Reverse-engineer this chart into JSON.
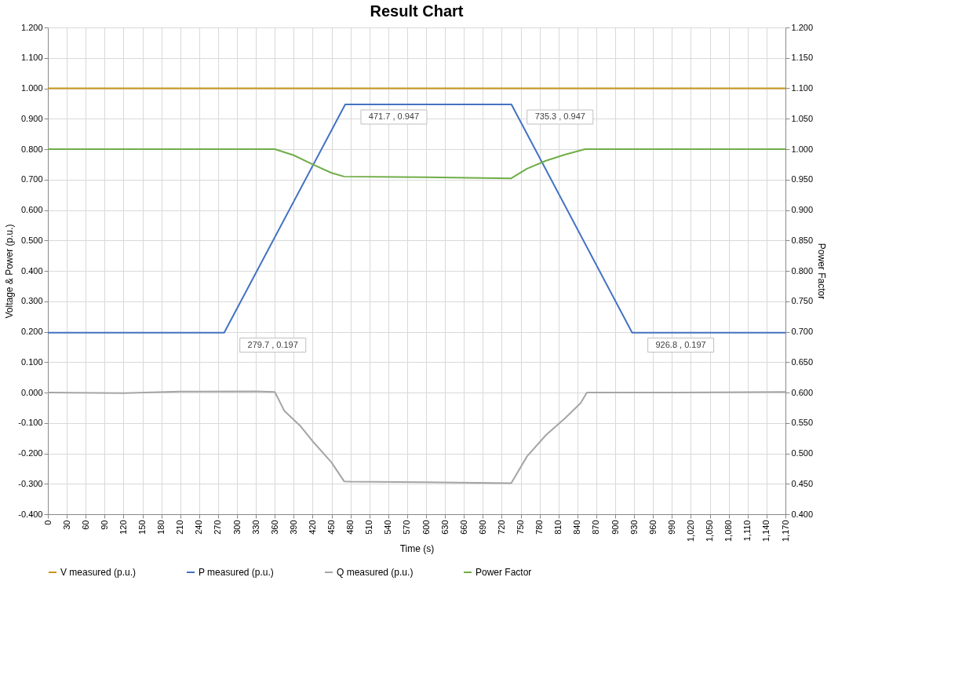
{
  "chart_data": {
    "type": "line",
    "title": "Result Chart",
    "xlabel": "Time (s)",
    "ylabel": "Voltage & Power (p.u.)",
    "y2label": "Power Factor",
    "xlim": [
      0,
      1170
    ],
    "xticks": [
      0,
      30,
      60,
      90,
      120,
      150,
      180,
      210,
      240,
      270,
      300,
      330,
      360,
      390,
      420,
      450,
      480,
      510,
      540,
      570,
      600,
      630,
      660,
      690,
      720,
      750,
      780,
      810,
      840,
      870,
      900,
      930,
      960,
      990,
      {
        "value": 1020,
        "label": "1,020"
      },
      {
        "value": 1050,
        "label": "1,050"
      },
      {
        "value": 1080,
        "label": "1,080"
      },
      {
        "value": 1110,
        "label": "1,110"
      },
      {
        "value": 1140,
        "label": "1,140"
      },
      {
        "value": 1170,
        "label": "1,170"
      }
    ],
    "ylim": [
      -0.4,
      1.2
    ],
    "yticks": [
      {
        "value": -0.4,
        "label": "-0.400"
      },
      {
        "value": -0.3,
        "label": "-0.300"
      },
      {
        "value": -0.2,
        "label": "-0.200"
      },
      {
        "value": -0.1,
        "label": "-0.100"
      },
      {
        "value": 0,
        "label": "0.000"
      },
      {
        "value": 0.1,
        "label": "0.100"
      },
      {
        "value": 0.2,
        "label": "0.200"
      },
      {
        "value": 0.3,
        "label": "0.300"
      },
      {
        "value": 0.4,
        "label": "0.400"
      },
      {
        "value": 0.5,
        "label": "0.500"
      },
      {
        "value": 0.6,
        "label": "0.600"
      },
      {
        "value": 0.7,
        "label": "0.700"
      },
      {
        "value": 0.8,
        "label": "0.800"
      },
      {
        "value": 0.9,
        "label": "0.900"
      },
      {
        "value": 1.0,
        "label": "1.000"
      },
      {
        "value": 1.1,
        "label": "1.100"
      },
      {
        "value": 1.2,
        "label": "1.200"
      }
    ],
    "y2lim": [
      0.4,
      1.2
    ],
    "y2ticks": [
      {
        "value": 0.4,
        "label": "0.400"
      },
      {
        "value": 0.45,
        "label": "0.450"
      },
      {
        "value": 0.5,
        "label": "0.500"
      },
      {
        "value": 0.55,
        "label": "0.550"
      },
      {
        "value": 0.6,
        "label": "0.600"
      },
      {
        "value": 0.65,
        "label": "0.650"
      },
      {
        "value": 0.7,
        "label": "0.700"
      },
      {
        "value": 0.75,
        "label": "0.750"
      },
      {
        "value": 0.8,
        "label": "0.800"
      },
      {
        "value": 0.85,
        "label": "0.850"
      },
      {
        "value": 0.9,
        "label": "0.900"
      },
      {
        "value": 0.95,
        "label": "0.950"
      },
      {
        "value": 1.0,
        "label": "1.000"
      },
      {
        "value": 1.05,
        "label": "1.050"
      },
      {
        "value": 1.1,
        "label": "1.100"
      },
      {
        "value": 1.15,
        "label": "1.150"
      },
      {
        "value": 1.2,
        "label": "1.200"
      }
    ],
    "grid": true,
    "legend": "bottom",
    "line_style": "solid",
    "marker": "none",
    "series": [
      {
        "name": "V measured (p.u.)",
        "color": "#c9961a",
        "x": [
          0,
          1170
        ],
        "values": [
          1.0,
          1.0
        ]
      },
      {
        "name": "P measured (p.u.)",
        "color": "#4472c4",
        "x": [
          0,
          279.7,
          471.7,
          735.3,
          926.8,
          1170
        ],
        "values": [
          0.197,
          0.197,
          0.947,
          0.947,
          0.197,
          0.197
        ]
      },
      {
        "name": "Q measured (p.u.)",
        "color": "#a5a5a5",
        "x": [
          0,
          120,
          210,
          330,
          360,
          375,
          400,
          420,
          450,
          470,
          480,
          600,
          735,
          760,
          790,
          820,
          845,
          855,
          1000,
          1170
        ],
        "values": [
          0,
          -0.002,
          0.003,
          0.004,
          0.002,
          -0.06,
          -0.109,
          -0.16,
          -0.23,
          -0.292,
          -0.293,
          -0.295,
          -0.298,
          -0.21,
          -0.14,
          -0.085,
          -0.035,
          0.0,
          0.0,
          0.002
        ]
      },
      {
        "name": "Power Factor",
        "color": "#70ad47",
        "axis": "y2",
        "x": [
          0,
          360,
          390,
          420,
          450,
          470,
          600,
          735,
          760,
          790,
          820,
          852,
          1170
        ],
        "values": [
          1.0,
          1.0,
          0.99,
          0.975,
          0.961,
          0.955,
          0.954,
          0.952,
          0.968,
          0.981,
          0.991,
          1.0,
          1.0
        ]
      }
    ],
    "annotations": [
      {
        "text": "279.7 , 0.197",
        "x": 279.7,
        "y": 0.197
      },
      {
        "text": "471.7 , 0.947",
        "x": 471.7,
        "y": 0.947
      },
      {
        "text": "735.3 , 0.947",
        "x": 735.3,
        "y": 0.947
      },
      {
        "text": "926.8 , 0.197",
        "x": 926.8,
        "y": 0.197
      }
    ]
  }
}
